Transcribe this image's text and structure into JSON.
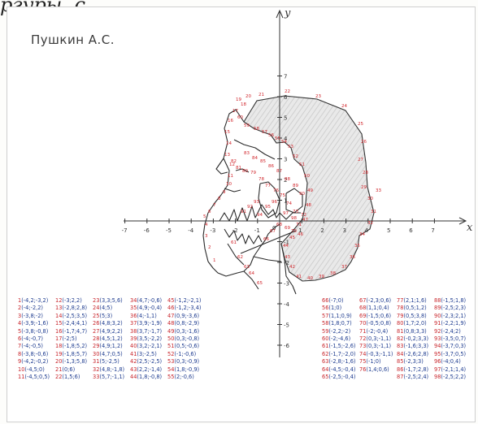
{
  "cut_title": "ргуры, с",
  "author": "Пушкин А.С.",
  "axes": {
    "x_label": "x",
    "y_label": "y",
    "x_ticks": [
      "-7",
      "-6",
      "-5",
      "-4",
      "-3",
      "-2",
      "-1",
      "1",
      "2",
      "3",
      "4",
      "5",
      "6",
      "7"
    ],
    "y_ticks": [
      "7",
      "6",
      "5",
      "4",
      "3",
      "2",
      "1",
      "-1",
      "-2",
      "-3",
      "-4",
      "-5",
      "-6"
    ],
    "origin": "0"
  },
  "figure_numbers": [
    "1",
    "2",
    "3",
    "4",
    "5",
    "6",
    "7",
    "8",
    "9",
    "10",
    "11",
    "12",
    "13",
    "14",
    "15",
    "16",
    "17",
    "18",
    "19",
    "20",
    "21",
    "22",
    "23",
    "24",
    "25",
    "26",
    "27",
    "28",
    "29",
    "30",
    "31",
    "32",
    "33",
    "34",
    "35",
    "36",
    "37",
    "38",
    "39",
    "40",
    "41",
    "42",
    "43",
    "44",
    "45",
    "46",
    "47",
    "48",
    "49",
    "50",
    "51",
    "52",
    "53",
    "54",
    "55",
    "56",
    "57",
    "58",
    "59",
    "60",
    "61",
    "62",
    "63",
    "64",
    "65",
    "66",
    "67",
    "68",
    "69",
    "70",
    "71",
    "72",
    "73",
    "74",
    "75",
    "76",
    "77",
    "78",
    "79",
    "80",
    "81",
    "82",
    "83",
    "84",
    "85",
    "86",
    "87",
    "88",
    "89",
    "90",
    "91",
    "92",
    "93",
    "94",
    "95",
    "96",
    "97",
    "98"
  ],
  "points_left": [
    [
      [
        "1",
        "(-4,2;-3,2)"
      ],
      [
        "2",
        "(-4;-2,2)"
      ],
      [
        "3",
        "(-3,8;-2)"
      ],
      [
        "4",
        "(-3,9;-1,6)"
      ],
      [
        "5",
        "(-3,8;-0,8)"
      ],
      [
        "6",
        "(-4;-0,7)"
      ],
      [
        "7",
        "(-4;-0,5)"
      ],
      [
        "8",
        "(-3,8;-0,6)"
      ],
      [
        "9",
        "(-4,2;-0,2)"
      ],
      [
        "10",
        "(-4,5;0)"
      ],
      [
        "11",
        "(-4,5;0,5)"
      ]
    ],
    [
      [
        "12",
        "(-3;2,2)"
      ],
      [
        "13",
        "(-2,8;2,8)"
      ],
      [
        "14",
        "(-2,5;3,5)"
      ],
      [
        "15",
        "(-2,4;4,1)"
      ],
      [
        "16",
        "(-1,7;4,7)"
      ],
      [
        "17",
        "(-2;5)"
      ],
      [
        "18",
        "(-1,8;5,2)"
      ],
      [
        "19",
        "(-1,8;5,7)"
      ],
      [
        "20",
        "(-1,3;5,8)"
      ],
      [
        "21",
        "(0;6)"
      ],
      [
        "22",
        "(1,5;6)"
      ]
    ],
    [
      [
        "23",
        "(3,3;5,6)"
      ],
      [
        "24",
        "(4;5)"
      ],
      [
        "25",
        "(5;3)"
      ],
      [
        "26",
        "(4,8;3,2)"
      ],
      [
        "27",
        "(4,9;2,2)"
      ],
      [
        "28",
        "(4,5;1,2)"
      ],
      [
        "29",
        "(4,9;1,2)"
      ],
      [
        "30",
        "(4,7;0,5)"
      ],
      [
        "31",
        "(5;-2,5)"
      ],
      [
        "32",
        "(4,8;-1,8)"
      ],
      [
        "33",
        "(5,7;-1,1)"
      ]
    ],
    [
      [
        "34",
        "(4,7;-0,6)"
      ],
      [
        "35",
        "(4,9;-0,4)"
      ],
      [
        "36",
        "(4;-1,1)"
      ],
      [
        "37",
        "(3,9;-1,9)"
      ],
      [
        "38",
        "(3,7;-1,7)"
      ],
      [
        "39",
        "(3,5;-2,2)"
      ],
      [
        "40",
        "(3,2;-2,1)"
      ],
      [
        "41",
        "(3;-2,5)"
      ],
      [
        "42",
        "(2,5;-2,5)"
      ],
      [
        "43",
        "(2,2;-1,4)"
      ],
      [
        "44",
        "(1,8;-0,8)"
      ]
    ],
    [
      [
        "45",
        "(-1,2;-2,1)"
      ],
      [
        "46",
        "(-1,2;-3,4)"
      ],
      [
        "47",
        "(0,9;-3,6)"
      ],
      [
        "48",
        "(0,8;-2,9)"
      ],
      [
        "49",
        "(0,3;-1,6)"
      ],
      [
        "50",
        "(0,3;-0,8)"
      ],
      [
        "51",
        "(0,5;-0,6)"
      ],
      [
        "52",
        "(-1;-0,6)"
      ],
      [
        "53",
        "(0,3;-0,9)"
      ],
      [
        "54",
        "(1,8;-0,9)"
      ],
      [
        "55",
        "(2;-0,6)"
      ]
    ]
  ],
  "points_right": [
    [
      [
        "66",
        "(-7;0)"
      ],
      [
        "56",
        "(1;0)"
      ],
      [
        "57",
        "(1,1;0,9)"
      ],
      [
        "58",
        "(1,8;0,7)"
      ],
      [
        "59",
        "(-2,2;-2)"
      ],
      [
        "60",
        "(-2;-4,6)"
      ],
      [
        "61",
        "(-1,5;-2,6)"
      ],
      [
        "62",
        "(-1,7;-2,0)"
      ],
      [
        "63",
        "(-2,8;-1,6)"
      ],
      [
        "64",
        "(-4,5;-0,4)"
      ],
      [
        "65",
        "(-2,5;-0,4)"
      ]
    ],
    [
      [
        "67",
        "(-2,3;0,6)"
      ],
      [
        "68",
        "(1,1;0,4)"
      ],
      [
        "69",
        "(-1,5;0,6)"
      ],
      [
        "70",
        "(-0,5;0,8)"
      ],
      [
        "71",
        "(-2;-0,4)"
      ],
      [
        "72",
        "(0,3;-1,1)"
      ],
      [
        "73",
        "(0,3;-1,1)"
      ],
      [
        "74",
        "(-0,3;-1,1)"
      ],
      [
        "75",
        "(-1;0)"
      ],
      [
        "76",
        "(1,4;0,6)"
      ]
    ],
    [
      [
        "77",
        "(2,1;1,6)"
      ],
      [
        "78",
        "(0,5;1,2)"
      ],
      [
        "79",
        "(0,5;3,8)"
      ],
      [
        "80",
        "(1,7;2,0)"
      ],
      [
        "81",
        "(0,8;3,3)"
      ],
      [
        "82",
        "(-0,2;3,3)"
      ],
      [
        "83",
        "(-1,6;3,3)"
      ],
      [
        "84",
        "(-2,6;2,8)"
      ],
      [
        "85",
        "(-2,3;3)"
      ],
      [
        "86",
        "(-1,7;2,8)"
      ],
      [
        "87",
        "(-2,5;2,4)"
      ]
    ],
    [
      [
        "88",
        "(-1,5;1,8)"
      ],
      [
        "89",
        "(-2,5;2,3)"
      ],
      [
        "90",
        "(-2,3;2,1)"
      ],
      [
        "91",
        "(-2,2;1,9)"
      ],
      [
        "92",
        "(-2,4;2)"
      ],
      [
        "93",
        "(-3,5;0,7)"
      ],
      [
        "94",
        "(-3,7;0,3)"
      ],
      [
        "95",
        "(-3,7;0,5)"
      ],
      [
        "96",
        "(-4;0,4)"
      ],
      [
        "97",
        "(-2,1;1,4)"
      ],
      [
        "98",
        "(-2,5;2,2)"
      ]
    ]
  ]
}
